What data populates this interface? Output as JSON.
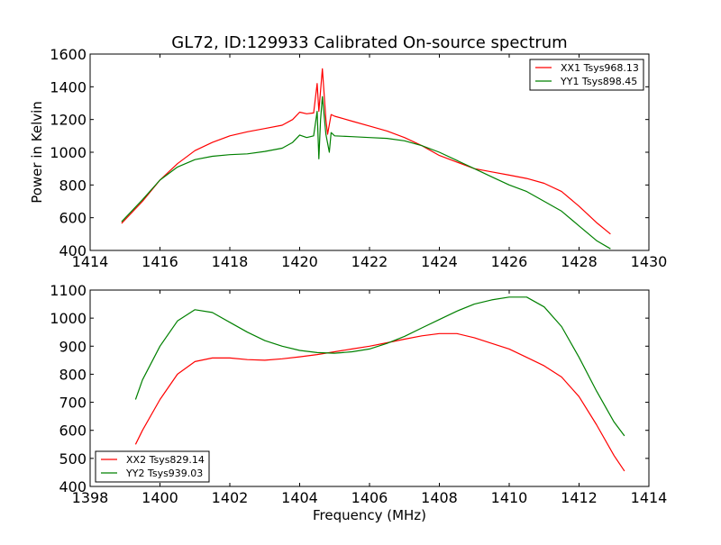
{
  "chart_data": [
    {
      "type": "line",
      "title": "GL72, ID:129933 Calibrated On-source spectrum",
      "xlabel": "",
      "ylabel": "Power in Kelvin",
      "xlim": [
        1414,
        1430
      ],
      "ylim": [
        400,
        1600
      ],
      "xticks": [
        1414,
        1416,
        1418,
        1420,
        1422,
        1424,
        1426,
        1428,
        1430
      ],
      "yticks": [
        400,
        600,
        800,
        1000,
        1200,
        1400,
        1600
      ],
      "legend_position": "top-right",
      "series": [
        {
          "name": "XX1 Tsys968.13",
          "color": "#ff0000",
          "x": [
            1414.9,
            1415.5,
            1416,
            1416.5,
            1417,
            1417.5,
            1418,
            1418.5,
            1419,
            1419.5,
            1419.8,
            1420,
            1420.2,
            1420.4,
            1420.5,
            1420.55,
            1420.65,
            1420.75,
            1420.8,
            1420.9,
            1421,
            1421.5,
            1422,
            1422.5,
            1423,
            1423.5,
            1424,
            1424.5,
            1425,
            1425.5,
            1426,
            1426.5,
            1427,
            1427.5,
            1428,
            1428.5,
            1428.9
          ],
          "y": [
            565,
            700,
            830,
            930,
            1010,
            1060,
            1100,
            1125,
            1145,
            1165,
            1200,
            1245,
            1235,
            1240,
            1420,
            1250,
            1510,
            1200,
            1110,
            1230,
            1220,
            1190,
            1160,
            1130,
            1090,
            1040,
            980,
            940,
            900,
            880,
            860,
            840,
            810,
            760,
            670,
            570,
            500
          ]
        },
        {
          "name": "YY1 Tsys898.45",
          "color": "#008000",
          "x": [
            1414.9,
            1415.5,
            1416,
            1416.5,
            1417,
            1417.5,
            1418,
            1418.5,
            1419,
            1419.5,
            1419.8,
            1420,
            1420.2,
            1420.4,
            1420.5,
            1420.55,
            1420.6,
            1420.65,
            1420.75,
            1420.85,
            1420.9,
            1421,
            1421.5,
            1422,
            1422.5,
            1423,
            1423.5,
            1424,
            1424.5,
            1425,
            1425.5,
            1426,
            1426.5,
            1427,
            1427.5,
            1428,
            1428.5,
            1428.9
          ],
          "y": [
            575,
            710,
            830,
            910,
            955,
            975,
            985,
            990,
            1005,
            1025,
            1060,
            1105,
            1090,
            1100,
            1250,
            960,
            1200,
            1340,
            1110,
            1000,
            1120,
            1100,
            1095,
            1090,
            1085,
            1070,
            1040,
            1000,
            950,
            900,
            850,
            800,
            760,
            700,
            640,
            550,
            460,
            410
          ]
        }
      ]
    },
    {
      "type": "line",
      "title": "",
      "xlabel": "Frequency (MHz)",
      "ylabel": "",
      "xlim": [
        1398,
        1414
      ],
      "ylim": [
        400,
        1100
      ],
      "xticks": [
        1398,
        1400,
        1402,
        1404,
        1406,
        1408,
        1410,
        1412,
        1414
      ],
      "yticks": [
        400,
        500,
        600,
        700,
        800,
        900,
        1000,
        1100
      ],
      "legend_position": "bottom-left",
      "series": [
        {
          "name": "XX2 Tsys829.14",
          "color": "#ff0000",
          "x": [
            1399.3,
            1399.5,
            1400,
            1400.5,
            1401,
            1401.5,
            1402,
            1402.5,
            1403,
            1403.5,
            1404,
            1404.5,
            1405,
            1405.5,
            1406,
            1406.5,
            1407,
            1407.5,
            1408,
            1408.5,
            1409,
            1409.5,
            1410,
            1410.5,
            1411,
            1411.5,
            1412,
            1412.5,
            1413,
            1413.3
          ],
          "y": [
            550,
            600,
            710,
            800,
            845,
            858,
            858,
            852,
            850,
            855,
            862,
            870,
            880,
            890,
            900,
            912,
            925,
            937,
            945,
            945,
            930,
            910,
            890,
            860,
            830,
            790,
            720,
            620,
            510,
            455
          ]
        },
        {
          "name": "YY2 Tsys939.03",
          "color": "#008000",
          "x": [
            1399.3,
            1399.5,
            1400,
            1400.5,
            1401,
            1401.5,
            1402,
            1402.5,
            1403,
            1403.5,
            1404,
            1404.5,
            1405,
            1405.5,
            1406,
            1406.5,
            1407,
            1407.5,
            1408,
            1408.5,
            1409,
            1409.5,
            1410,
            1410.5,
            1411,
            1411.5,
            1412,
            1412.5,
            1413,
            1413.3
          ],
          "y": [
            710,
            780,
            900,
            990,
            1030,
            1020,
            985,
            950,
            920,
            900,
            885,
            877,
            875,
            880,
            890,
            910,
            935,
            965,
            995,
            1025,
            1050,
            1065,
            1075,
            1075,
            1040,
            970,
            860,
            740,
            630,
            580
          ]
        }
      ]
    }
  ]
}
